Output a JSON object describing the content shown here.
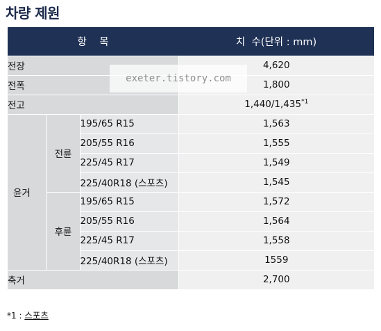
{
  "title": "차량 제원",
  "header": {
    "item": "항    목",
    "value": "치  수(단위 : mm)"
  },
  "rows": {
    "length": {
      "label": "전장",
      "value": "4,620"
    },
    "width": {
      "label": "전폭",
      "value": "1,800"
    },
    "height": {
      "label": "전고",
      "value": "1,440/1,435",
      "sup": "*1"
    }
  },
  "tread": {
    "label": "윤거",
    "front": {
      "label": "전륜",
      "items": [
        {
          "tire": "195/65 R15",
          "value": "1,563"
        },
        {
          "tire": "205/55 R16",
          "value": "1,555"
        },
        {
          "tire": "225/45 R17",
          "value": "1,549"
        },
        {
          "tire": "225/40R18 (스포츠)",
          "value": "1,545"
        }
      ]
    },
    "rear": {
      "label": "후륜",
      "items": [
        {
          "tire": "195/65 R15",
          "value": "1,572"
        },
        {
          "tire": "205/55 R16",
          "value": "1,564"
        },
        {
          "tire": "225/45 R17",
          "value": "1,558"
        },
        {
          "tire": "225/40R18 (스포츠)",
          "value": "1559"
        }
      ]
    }
  },
  "wheelbase": {
    "label": "축거",
    "value": "2,700"
  },
  "watermark": "exeter.tistory.com",
  "footnote": {
    "mark": "*1 : ",
    "text": "스포츠"
  }
}
